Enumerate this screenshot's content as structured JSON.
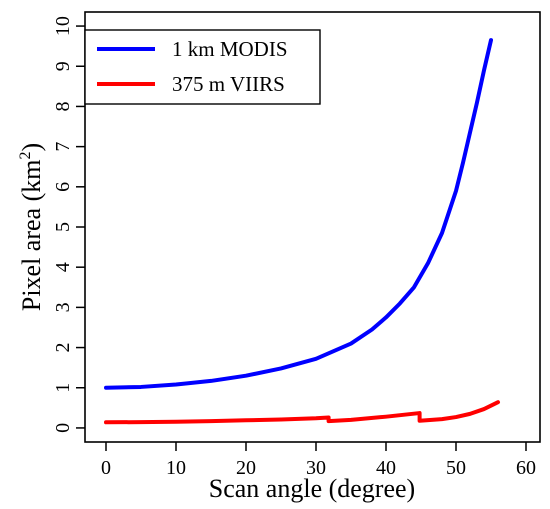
{
  "chart_data": {
    "type": "line",
    "xlabel": "Scan angle (degree)",
    "ylabel_main": "Pixel area (km",
    "ylabel_sup": "2",
    "ylabel_close": ")",
    "xlim": [
      -3,
      62
    ],
    "ylim": [
      -0.35,
      10.35
    ],
    "xticks": [
      0,
      10,
      20,
      30,
      40,
      50,
      60
    ],
    "yticks": [
      0,
      1,
      2,
      3,
      4,
      5,
      6,
      7,
      8,
      9,
      10
    ],
    "grid": false,
    "legend_position": "top-left",
    "series": [
      {
        "name": "1 km MODIS",
        "color": "#0000ff",
        "x": [
          0,
          5,
          10,
          15,
          20,
          25,
          30,
          35,
          38,
          40,
          42,
          44,
          46,
          48,
          50,
          51,
          52,
          53,
          54,
          55
        ],
        "y": [
          1.0,
          1.02,
          1.08,
          1.17,
          1.3,
          1.48,
          1.72,
          2.1,
          2.45,
          2.75,
          3.1,
          3.5,
          4.1,
          4.85,
          5.9,
          6.6,
          7.35,
          8.1,
          8.9,
          9.65
        ]
      },
      {
        "name": "375 m VIIRS",
        "color": "#ff0000",
        "x": [
          0,
          5,
          10,
          15,
          20,
          25,
          30,
          31.8,
          31.8,
          35,
          40,
          44.8,
          44.8,
          48,
          50,
          52,
          54,
          56
        ],
        "y": [
          0.14,
          0.145,
          0.155,
          0.17,
          0.19,
          0.21,
          0.24,
          0.26,
          0.17,
          0.2,
          0.28,
          0.37,
          0.18,
          0.22,
          0.27,
          0.35,
          0.47,
          0.64
        ]
      }
    ]
  }
}
